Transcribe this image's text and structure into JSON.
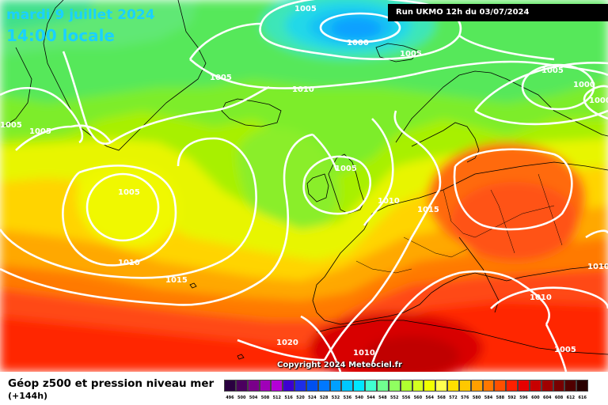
{
  "header": {
    "date_line": "mardi 9 juillet 2024",
    "time_line": "14:00 locale",
    "run_info": "Run UKMO 12h du 03/07/2024"
  },
  "footer": {
    "title": "Géop z500 et pression niveau mer",
    "lead_time": "(+144h)",
    "copyright": "Copyright 2024 Meteociel.fr"
  },
  "legend": {
    "values": [
      "496",
      "500",
      "504",
      "508",
      "512",
      "516",
      "520",
      "524",
      "528",
      "532",
      "536",
      "540",
      "544",
      "548",
      "552",
      "556",
      "560",
      "564",
      "568",
      "572",
      "576",
      "580",
      "584",
      "588",
      "592",
      "596",
      "600",
      "604",
      "608",
      "612",
      "616"
    ],
    "colors": [
      "#2a0040",
      "#4b005f",
      "#7a008a",
      "#a000b8",
      "#b400d7",
      "#3c00d0",
      "#1e2de6",
      "#0050f0",
      "#0078ff",
      "#00a0ff",
      "#00c8ff",
      "#00e6ff",
      "#40ffd0",
      "#70ff90",
      "#90ff60",
      "#b0ff30",
      "#d4ff20",
      "#f0ff00",
      "#ffff50",
      "#ffe000",
      "#ffc800",
      "#ffa000",
      "#ff7800",
      "#ff5000",
      "#ff2000",
      "#e60000",
      "#c80000",
      "#a00000",
      "#780000",
      "#500000",
      "#2a0000"
    ]
  },
  "isobar_labels": [
    "1005",
    "1000",
    "1005",
    "1005",
    "1010",
    "1005",
    "1000",
    "1000",
    "1005",
    "1005",
    "1005",
    "1010",
    "1015",
    "1005",
    "1010",
    "1015",
    "1010",
    "1020",
    "1010",
    "1010",
    "1005",
    "1010"
  ]
}
